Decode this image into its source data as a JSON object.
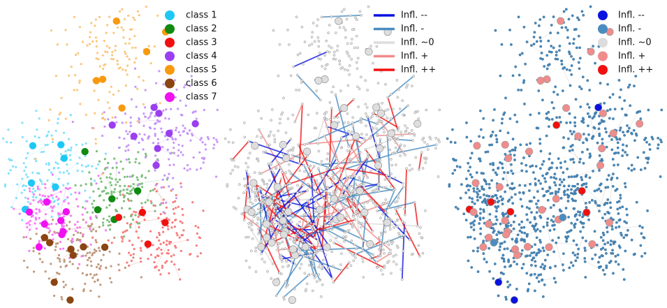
{
  "panels": [
    {
      "marker": "circle",
      "legend": [
        {
          "label": "class 1",
          "color": "#1ec8f5"
        },
        {
          "label": "class 2",
          "color": "#118a11"
        },
        {
          "label": "class 3",
          "color": "#f01010"
        },
        {
          "label": "class 4",
          "color": "#9a3ff0"
        },
        {
          "label": "class 5",
          "color": "#f79a10"
        },
        {
          "label": "class 6",
          "color": "#8a4513"
        },
        {
          "label": "class 7",
          "color": "#f010f0"
        }
      ]
    },
    {
      "marker": "line",
      "legend": [
        {
          "label": "Infl. --",
          "color": "#0a12e0"
        },
        {
          "label": "Infl. -",
          "color": "#4a8cc0"
        },
        {
          "label": "Infl. ~0",
          "color": "#dcdcdc"
        },
        {
          "label": "Infl. +",
          "color": "#f08c8c"
        },
        {
          "label": "Infl. ++",
          "color": "#f01010"
        }
      ]
    },
    {
      "marker": "circle",
      "legend": [
        {
          "label": "Infl. --",
          "color": "#0a12e0"
        },
        {
          "label": "Infl. -",
          "color": "#4a8cc0"
        },
        {
          "label": "Infl. ~0",
          "color": "#dcdcdc"
        },
        {
          "label": "Infl. +",
          "color": "#f08c8c"
        },
        {
          "label": "Infl. ++",
          "color": "#f01010"
        }
      ]
    }
  ]
}
